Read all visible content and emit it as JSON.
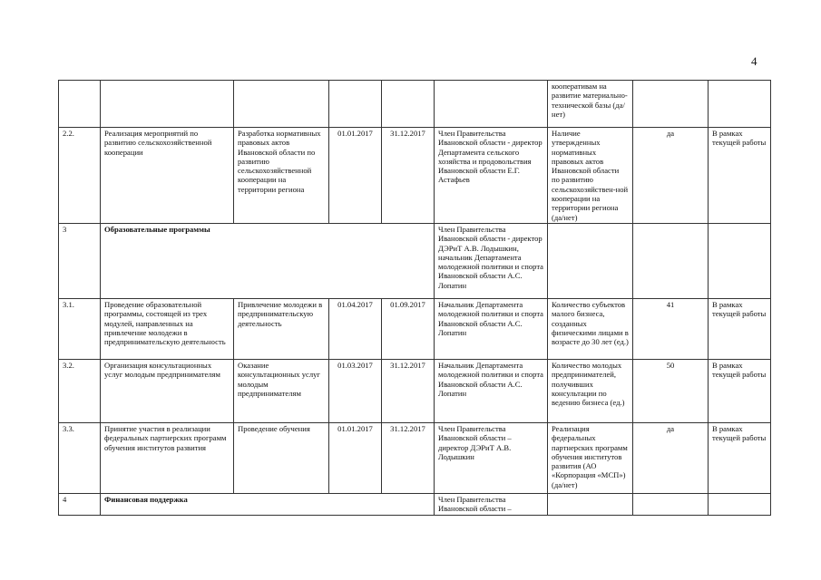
{
  "page_number": "4",
  "rows": [
    {
      "num": "",
      "name": "",
      "result": "",
      "start": "",
      "end": "",
      "responsible": "",
      "indicator": "кооперативам на развитие материально-технической базы (да/нет)",
      "value": "",
      "source": ""
    },
    {
      "num": "2.2.",
      "name": "Реализация мероприятий по развитию сельскохозяйственной кооперации",
      "result": "Разработка нормативных правовых актов Ивановской области по развитию сельскохозяйственной кооперации на территории региона",
      "start": "01.01.2017",
      "end": "31.12.2017",
      "responsible": "Член Правительства Ивановской области - директор Департамента сельского хозяйства и продовольствия Ивановской области Е.Г. Астафьев",
      "indicator": "Наличие утвержденных нормативных правовых актов Ивановской области по развитию сельскохозяйствен-ной кооперации на территории региона (да/нет)",
      "value": "да",
      "source": "В рамках текущей работы"
    },
    {
      "num": "3",
      "section": "Образовательные программы",
      "responsible": "Член Правительства Ивановской области - директор ДЭРиТ А.В. Лодышкин, начальник Департамента молодежной политики и спорта Ивановской области А.С. Лопатин"
    },
    {
      "num": "3.1.",
      "name": "Проведение образовательной программы, состоящей из трех модулей, направленных на привлечение молодежи в предпринимательскую деятельность",
      "result": "Привлечение молодежи в предпринимательскую деятельность",
      "start": "01.04.2017",
      "end": "01.09.2017",
      "responsible": "Начальник Департамента молодежной политики и спорта Ивановской области А.С. Лопатин",
      "indicator": "Количество субъектов малого бизнеса, созданных физическими лицами в возрасте до 30 лет (ед.)",
      "value": "41",
      "source": "В рамках текущей работы"
    },
    {
      "num": "3.2.",
      "name": "Организация консультационных услуг молодым предпринимателям",
      "result": "Оказание консультационных услуг молодым предпринимателям",
      "start": "01.03.2017",
      "end": "31.12.2017",
      "responsible": "Начальник Департамента молодежной политики и спорта Ивановской области А.С. Лопатин",
      "indicator": "Количество молодых предпринимателей, получивших консультации по ведению бизнеса (ед.)",
      "value": "50",
      "source": "В рамках текущей работы"
    },
    {
      "num": "3.3.",
      "name": "Принятие участия в реализации федеральных партнерских программ обучения институтов развития",
      "result": "Проведение обучения",
      "start": "01.01.2017",
      "end": "31.12.2017",
      "responsible": "Член Правительства Ивановской области – директор ДЭРиТ А.В. Лодышкин",
      "indicator": "Реализация федеральных партнерских программ обучения институтов развития (АО «Корпорация «МСП») (да/нет)",
      "value": "да",
      "source": "В рамках текущей работы"
    },
    {
      "num": "4",
      "section": "Финансовая поддержка",
      "responsible": "Член Правительства Ивановской области –"
    }
  ]
}
